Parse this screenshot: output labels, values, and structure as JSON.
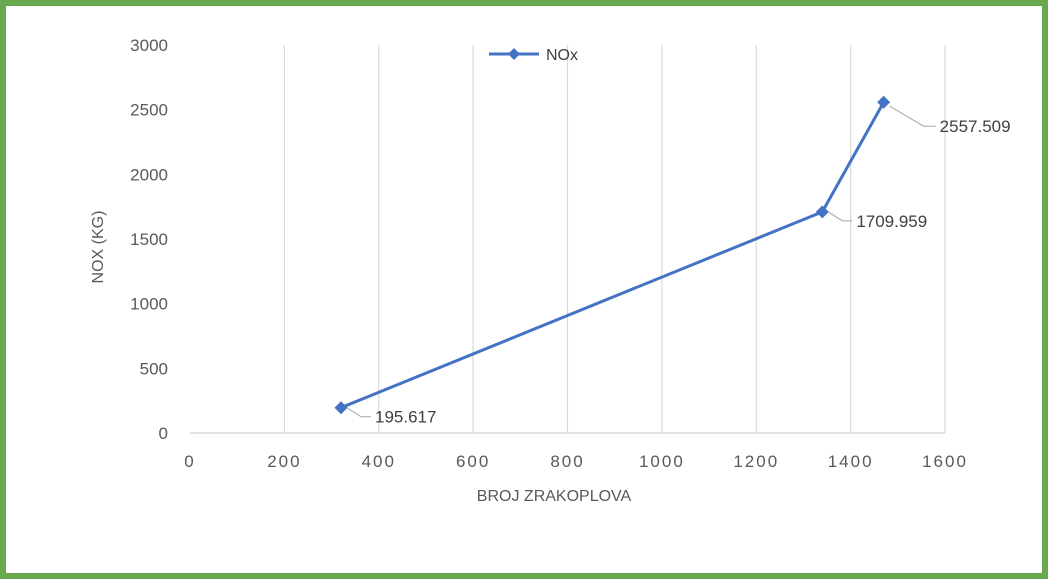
{
  "chart_data": {
    "type": "line",
    "xlabel": "BROJ ZRAKOPLOVA",
    "ylabel": "NOX (KG)",
    "xlim": [
      0,
      1600
    ],
    "ylim": [
      0,
      3000
    ],
    "x_ticks": [
      "0",
      "200",
      "400",
      "600",
      "800",
      "1000",
      "1200",
      "1400",
      "1600"
    ],
    "y_ticks": [
      "0",
      "500",
      "1000",
      "1500",
      "2000",
      "2500",
      "3000"
    ],
    "grid": "vertical",
    "legend_position": "top",
    "series": [
      {
        "name": "NOx",
        "color": "#4472c4",
        "marker": "diamond",
        "x": [
          320,
          1340,
          1470
        ],
        "y": [
          195.617,
          1709.959,
          2557.509
        ],
        "labels": [
          "195.617",
          "1709.959",
          "2557.509"
        ]
      }
    ]
  }
}
